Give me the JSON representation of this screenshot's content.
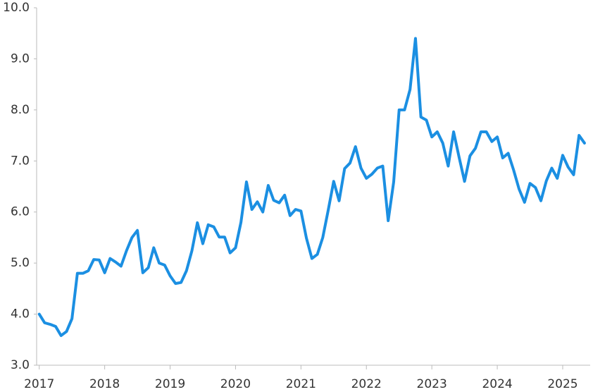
{
  "chart_data": {
    "type": "line",
    "x": [
      2017,
      2017.083,
      2017.167,
      2017.25,
      2017.333,
      2017.417,
      2017.5,
      2017.583,
      2017.667,
      2017.75,
      2017.833,
      2017.917,
      2018,
      2018.083,
      2018.167,
      2018.25,
      2018.333,
      2018.417,
      2018.5,
      2018.583,
      2018.667,
      2018.75,
      2018.833,
      2018.917,
      2019,
      2019.083,
      2019.167,
      2019.25,
      2019.333,
      2019.417,
      2019.5,
      2019.583,
      2019.667,
      2019.75,
      2019.833,
      2019.917,
      2020,
      2020.083,
      2020.167,
      2020.25,
      2020.333,
      2020.417,
      2020.5,
      2020.583,
      2020.667,
      2020.75,
      2020.833,
      2020.917,
      2021,
      2021.083,
      2021.167,
      2021.25,
      2021.333,
      2021.417,
      2021.5,
      2021.583,
      2021.667,
      2021.75,
      2021.833,
      2021.917,
      2022,
      2022.083,
      2022.167,
      2022.25,
      2022.333,
      2022.417,
      2022.5,
      2022.583,
      2022.667,
      2022.75,
      2022.833,
      2022.917,
      2023,
      2023.083,
      2023.167,
      2023.25,
      2023.333,
      2023.417,
      2023.5,
      2023.583,
      2023.667,
      2023.75,
      2023.833,
      2023.917,
      2024,
      2024.083,
      2024.167,
      2024.25,
      2024.333,
      2024.417,
      2024.5,
      2024.583,
      2024.667,
      2024.75,
      2024.833,
      2024.917,
      2025,
      2025.083,
      2025.167,
      2025.25,
      2025.333
    ],
    "values": [
      4.0,
      3.83,
      3.8,
      3.76,
      3.58,
      3.66,
      3.91,
      4.8,
      4.8,
      4.85,
      5.07,
      5.06,
      4.81,
      5.09,
      5.02,
      4.94,
      5.24,
      5.5,
      5.64,
      4.81,
      4.91,
      5.3,
      5.0,
      4.96,
      4.75,
      4.6,
      4.62,
      4.85,
      5.24,
      5.79,
      5.38,
      5.75,
      5.71,
      5.51,
      5.51,
      5.2,
      5.3,
      5.8,
      6.59,
      6.05,
      6.2,
      6.0,
      6.52,
      6.23,
      6.18,
      6.33,
      5.93,
      6.05,
      6.02,
      5.49,
      5.09,
      5.17,
      5.5,
      6.04,
      6.6,
      6.22,
      6.85,
      6.96,
      7.28,
      6.86,
      6.66,
      6.74,
      6.86,
      6.9,
      5.83,
      6.59,
      8.0,
      8.0,
      8.4,
      9.4,
      7.86,
      7.8,
      7.47,
      7.57,
      7.35,
      6.9,
      7.57,
      7.07,
      6.6,
      7.1,
      7.25,
      7.57,
      7.57,
      7.38,
      7.47,
      7.06,
      7.15,
      6.82,
      6.45,
      6.19,
      6.56,
      6.48,
      6.22,
      6.61,
      6.86,
      6.66,
      7.11,
      6.88,
      6.73,
      7.5,
      7.35
    ],
    "color": "#1b8fe2",
    "xlim": [
      2016.96,
      2025.42
    ],
    "xticks": [
      2017,
      2018,
      2019,
      2020,
      2021,
      2022,
      2023,
      2024,
      2025
    ],
    "ylim": [
      3,
      10
    ],
    "yticks": [
      {
        "value": 3,
        "label": "3.0"
      },
      {
        "value": 4,
        "label": "4.0"
      },
      {
        "value": 5,
        "label": "5.0"
      },
      {
        "value": 6,
        "label": "6.0"
      },
      {
        "value": 7,
        "label": "7.0"
      },
      {
        "value": 8,
        "label": "8.0"
      },
      {
        "value": 9,
        "label": "9.0"
      },
      {
        "value": 10,
        "label": "10.0"
      }
    ],
    "grid": false
  }
}
